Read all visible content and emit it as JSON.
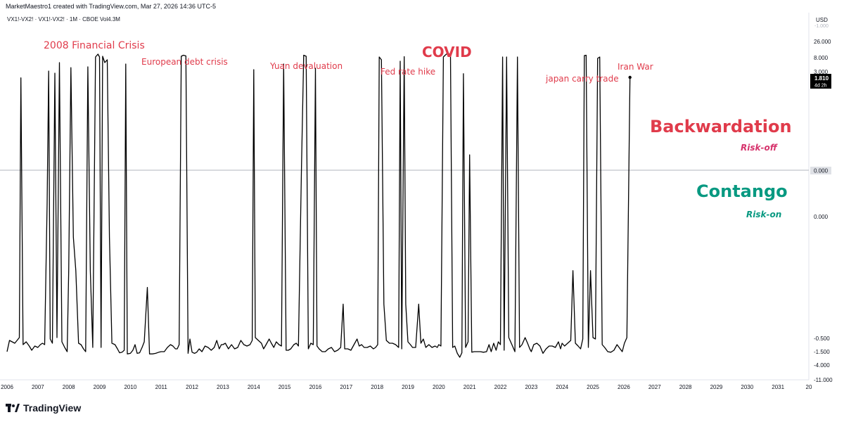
{
  "header": {
    "credit": "MarketMaestro1 created with TradingView.com, Mar 27, 2026 14:36 UTC-5",
    "symbol_line": "VX1!-VX2! · VX1!-VX2! · 1M · CBOE  Vol4.3M"
  },
  "axis": {
    "currency": "USD",
    "right_tick_labels": [
      "26.000",
      "8.000",
      "3.000",
      "0.000",
      "-0.500",
      "-1.500",
      "-4.000",
      "-11.000"
    ],
    "top_tick_partial": "-1.000",
    "last_value_label": "1.810",
    "countdown_label": "4d 2h",
    "zero_line_label": "0.000"
  },
  "brand": {
    "name": "TradingView"
  },
  "colors": {
    "line": "#000000",
    "annotation": "#e03b4b",
    "backwardation": "#e03b4b",
    "risk_off": "#d6336c",
    "contango": "#089981",
    "zero_line": "#b2b5be"
  },
  "annotations": {
    "financial_crisis": "2008 Financial Crisis",
    "euro_debt": "European debt crisis",
    "yuan": "Yuan devaluation",
    "fed_hike": "Fed rate hike",
    "covid": "COVID",
    "japan": "japan carry trade",
    "iran": "Iran War"
  },
  "regimes": {
    "backwardation": "Backwardation",
    "risk_off": "Risk-off",
    "contango": "Contango",
    "risk_on": "Risk-on"
  },
  "chart_data": {
    "type": "line",
    "title": "VX1!-VX2!",
    "interval": "1M",
    "y_scale": "nonlinear (labels 26.000 … -11.000, 0.000 at center)",
    "x_tick_labels": [
      "2006",
      "2007",
      "2008",
      "2009",
      "2010",
      "2011",
      "2012",
      "2013",
      "2014",
      "2015",
      "2016",
      "2017",
      "2018",
      "2019",
      "2020",
      "2021",
      "2022",
      "2023",
      "2024",
      "2025",
      "2026",
      "2027",
      "2028",
      "2029",
      "2030",
      "2031",
      "20"
    ],
    "x_range": [
      2006.0,
      2032.0
    ],
    "last_value": 1.81,
    "series": [
      {
        "values": [
          [
            2006.0,
            -1.5
          ],
          [
            2006.08,
            -0.7
          ],
          [
            2006.25,
            -0.9
          ],
          [
            2006.4,
            -0.5
          ],
          [
            2006.45,
            1.8
          ],
          [
            2006.52,
            -1.0
          ],
          [
            2006.62,
            -0.8
          ],
          [
            2006.72,
            -1.1
          ],
          [
            2006.8,
            -1.4
          ],
          [
            2006.9,
            -1.1
          ],
          [
            2007.0,
            -1.2
          ],
          [
            2007.08,
            -1.0
          ],
          [
            2007.15,
            -0.9
          ],
          [
            2007.22,
            -1.0
          ],
          [
            2007.3,
            -0.1
          ],
          [
            2007.35,
            3.0
          ],
          [
            2007.4,
            -0.6
          ],
          [
            2007.47,
            -0.9
          ],
          [
            2007.55,
            2.6
          ],
          [
            2007.62,
            -0.5
          ],
          [
            2007.7,
            6.0
          ],
          [
            2007.78,
            -0.8
          ],
          [
            2007.87,
            -1.2
          ],
          [
            2007.95,
            -1.5
          ],
          [
            2008.0,
            -0.3
          ],
          [
            2008.07,
            4.2
          ],
          [
            2008.15,
            -0.2
          ],
          [
            2008.23,
            -0.3
          ],
          [
            2008.32,
            -0.9
          ],
          [
            2008.4,
            -1.0
          ],
          [
            2008.48,
            -1.3
          ],
          [
            2008.55,
            -1.5
          ],
          [
            2008.62,
            4.5
          ],
          [
            2008.7,
            -0.3
          ],
          [
            2008.78,
            -1.2
          ],
          [
            2008.87,
            8.0
          ],
          [
            2008.95,
            16.0
          ],
          [
            2009.0,
            8.0
          ],
          [
            2009.05,
            -1.2
          ],
          [
            2009.1,
            10.0
          ],
          [
            2009.17,
            6.0
          ],
          [
            2009.25,
            7.0
          ],
          [
            2009.32,
            -0.2
          ],
          [
            2009.4,
            -0.9
          ],
          [
            2009.5,
            -1.0
          ],
          [
            2009.58,
            -1.3
          ],
          [
            2009.65,
            -1.7
          ],
          [
            2009.73,
            -1.6
          ],
          [
            2009.8,
            -1.4
          ],
          [
            2009.85,
            5.5
          ],
          [
            2009.9,
            -1.9
          ],
          [
            2010.0,
            -1.8
          ],
          [
            2010.08,
            -1.4
          ],
          [
            2010.15,
            -1.0
          ],
          [
            2010.22,
            -1.8
          ],
          [
            2010.3,
            -1.7
          ],
          [
            2010.38,
            -1.2
          ],
          [
            2010.45,
            -0.8
          ],
          [
            2010.55,
            -0.35
          ],
          [
            2010.62,
            -1.9
          ],
          [
            2010.72,
            -1.9
          ],
          [
            2010.82,
            -1.8
          ],
          [
            2010.92,
            -1.6
          ],
          [
            2011.0,
            -1.5
          ],
          [
            2011.1,
            -1.5
          ],
          [
            2011.2,
            -1.2
          ],
          [
            2011.3,
            -1.0
          ],
          [
            2011.38,
            -1.1
          ],
          [
            2011.46,
            -1.3
          ],
          [
            2011.52,
            -1.3
          ],
          [
            2011.58,
            -1.0
          ],
          [
            2011.65,
            10.0
          ],
          [
            2011.72,
            13.0
          ],
          [
            2011.8,
            11.0
          ],
          [
            2011.87,
            -1.8
          ],
          [
            2011.93,
            -0.6
          ],
          [
            2012.0,
            -1.6
          ],
          [
            2012.08,
            -1.8
          ],
          [
            2012.15,
            -1.6
          ],
          [
            2012.23,
            -1.3
          ],
          [
            2012.32,
            -1.5
          ],
          [
            2012.42,
            -1.1
          ],
          [
            2012.52,
            -1.2
          ],
          [
            2012.62,
            -1.4
          ],
          [
            2012.72,
            -1.2
          ],
          [
            2012.8,
            -0.7
          ],
          [
            2012.88,
            -1.3
          ],
          [
            2012.95,
            -1.0
          ],
          [
            2013.0,
            -1.0
          ],
          [
            2013.08,
            -0.9
          ],
          [
            2013.18,
            -1.3
          ],
          [
            2013.28,
            -1.0
          ],
          [
            2013.38,
            -1.3
          ],
          [
            2013.48,
            -1.2
          ],
          [
            2013.58,
            -0.7
          ],
          [
            2013.68,
            -1.0
          ],
          [
            2013.78,
            -1.1
          ],
          [
            2013.88,
            -1.0
          ],
          [
            2013.95,
            -0.7
          ],
          [
            2014.0,
            3.5
          ],
          [
            2014.05,
            -0.5
          ],
          [
            2014.15,
            -0.7
          ],
          [
            2014.25,
            -0.9
          ],
          [
            2014.32,
            -1.3
          ],
          [
            2014.4,
            -1.0
          ],
          [
            2014.5,
            -0.6
          ],
          [
            2014.57,
            -0.9
          ],
          [
            2014.65,
            -1.2
          ],
          [
            2014.73,
            -0.8
          ],
          [
            2014.82,
            -1.0
          ],
          [
            2014.9,
            -1.1
          ],
          [
            2014.97,
            5.5
          ],
          [
            2015.05,
            -1.4
          ],
          [
            2015.12,
            -1.4
          ],
          [
            2015.2,
            -1.3
          ],
          [
            2015.3,
            -1.0
          ],
          [
            2015.38,
            -0.9
          ],
          [
            2015.45,
            -1.1
          ],
          [
            2015.55,
            0.1
          ],
          [
            2015.62,
            13.0
          ],
          [
            2015.7,
            10.0
          ],
          [
            2015.77,
            -1.3
          ],
          [
            2015.85,
            -0.9
          ],
          [
            2015.93,
            -1.0
          ],
          [
            2016.0,
            4.0
          ],
          [
            2016.05,
            -1.1
          ],
          [
            2016.12,
            -1.3
          ],
          [
            2016.22,
            -1.5
          ],
          [
            2016.32,
            -1.5
          ],
          [
            2016.42,
            -1.3
          ],
          [
            2016.52,
            -1.2
          ],
          [
            2016.62,
            -1.5
          ],
          [
            2016.72,
            -1.4
          ],
          [
            2016.82,
            -1.2
          ],
          [
            2016.9,
            -0.4
          ],
          [
            2016.95,
            -1.3
          ],
          [
            2017.05,
            -1.3
          ],
          [
            2017.15,
            -1.4
          ],
          [
            2017.25,
            -1.0
          ],
          [
            2017.35,
            -0.6
          ],
          [
            2017.42,
            -1.1
          ],
          [
            2017.5,
            -1.0
          ],
          [
            2017.58,
            -1.2
          ],
          [
            2017.68,
            -1.2
          ],
          [
            2017.78,
            -1.1
          ],
          [
            2017.88,
            -1.3
          ],
          [
            2017.95,
            -1.2
          ],
          [
            2018.02,
            -1.0
          ],
          [
            2018.07,
            8.0
          ],
          [
            2018.14,
            7.0
          ],
          [
            2018.22,
            -0.4
          ],
          [
            2018.3,
            -0.7
          ],
          [
            2018.4,
            -0.9
          ],
          [
            2018.5,
            -0.9
          ],
          [
            2018.6,
            -1.0
          ],
          [
            2018.7,
            -1.2
          ],
          [
            2018.75,
            6.5
          ],
          [
            2018.8,
            -1.3
          ],
          [
            2018.88,
            9.0
          ],
          [
            2018.93,
            -0.4
          ],
          [
            2019.0,
            -0.8
          ],
          [
            2019.08,
            -1.0
          ],
          [
            2019.15,
            -1.2
          ],
          [
            2019.25,
            -1.2
          ],
          [
            2019.35,
            -0.4
          ],
          [
            2019.42,
            -0.9
          ],
          [
            2019.5,
            -0.6
          ],
          [
            2019.58,
            -1.2
          ],
          [
            2019.68,
            -1.0
          ],
          [
            2019.78,
            -1.2
          ],
          [
            2019.88,
            -1.1
          ],
          [
            2019.95,
            -1.2
          ],
          [
            2020.0,
            -1.0
          ],
          [
            2020.07,
            -1.1
          ],
          [
            2020.15,
            8.0
          ],
          [
            2020.22,
            14.0
          ],
          [
            2020.3,
            17.0
          ],
          [
            2020.38,
            11.0
          ],
          [
            2020.45,
            -1.2
          ],
          [
            2020.52,
            -1.1
          ],
          [
            2020.6,
            -1.8
          ],
          [
            2020.68,
            -2.5
          ],
          [
            2020.75,
            -1.7
          ],
          [
            2020.8,
            2.5
          ],
          [
            2020.87,
            -1.2
          ],
          [
            2020.95,
            -0.8
          ],
          [
            2021.0,
            0.3
          ],
          [
            2021.07,
            -1.6
          ],
          [
            2021.15,
            -1.5
          ],
          [
            2021.25,
            -1.5
          ],
          [
            2021.35,
            -1.5
          ],
          [
            2021.45,
            -1.6
          ],
          [
            2021.55,
            -1.5
          ],
          [
            2021.63,
            -1.0
          ],
          [
            2021.7,
            -1.5
          ],
          [
            2021.78,
            -0.9
          ],
          [
            2021.86,
            -1.4
          ],
          [
            2021.93,
            -0.8
          ],
          [
            2022.0,
            -1.0
          ],
          [
            2022.07,
            8.0
          ],
          [
            2022.12,
            -1.4
          ],
          [
            2022.2,
            8.0
          ],
          [
            2022.27,
            -0.5
          ],
          [
            2022.37,
            -1.0
          ],
          [
            2022.47,
            -1.5
          ],
          [
            2022.55,
            8.0
          ],
          [
            2022.62,
            -1.2
          ],
          [
            2022.7,
            -1.0
          ],
          [
            2022.8,
            -0.5
          ],
          [
            2022.88,
            -0.9
          ],
          [
            2022.95,
            -1.3
          ],
          [
            2023.0,
            -1.5
          ],
          [
            2023.08,
            -1.0
          ],
          [
            2023.18,
            -0.9
          ],
          [
            2023.28,
            -1.1
          ],
          [
            2023.38,
            -1.8
          ],
          [
            2023.48,
            -1.3
          ],
          [
            2023.58,
            -1.1
          ],
          [
            2023.68,
            -1.1
          ],
          [
            2023.78,
            -1.2
          ],
          [
            2023.88,
            -0.8
          ],
          [
            2023.95,
            -1.3
          ],
          [
            2024.0,
            -0.9
          ],
          [
            2024.08,
            -1.1
          ],
          [
            2024.18,
            -0.9
          ],
          [
            2024.28,
            -0.7
          ],
          [
            2024.35,
            -0.3
          ],
          [
            2024.43,
            -0.9
          ],
          [
            2024.52,
            -1.1
          ],
          [
            2024.6,
            -1.3
          ],
          [
            2024.67,
            -0.6
          ],
          [
            2024.72,
            12.0
          ],
          [
            2024.78,
            13.0
          ],
          [
            2024.85,
            -1.2
          ],
          [
            2024.92,
            -0.3
          ],
          [
            2025.0,
            -0.5
          ],
          [
            2025.08,
            -0.6
          ],
          [
            2025.15,
            7.5
          ],
          [
            2025.22,
            8.0
          ],
          [
            2025.3,
            -1.0
          ],
          [
            2025.38,
            -1.2
          ],
          [
            2025.48,
            -1.5
          ],
          [
            2025.58,
            -1.6
          ],
          [
            2025.68,
            -1.4
          ],
          [
            2025.78,
            -1.0
          ],
          [
            2025.88,
            -1.3
          ],
          [
            2025.95,
            -1.5
          ],
          [
            2026.02,
            -0.9
          ],
          [
            2026.1,
            -0.5
          ],
          [
            2026.2,
            1.81
          ]
        ]
      }
    ]
  }
}
